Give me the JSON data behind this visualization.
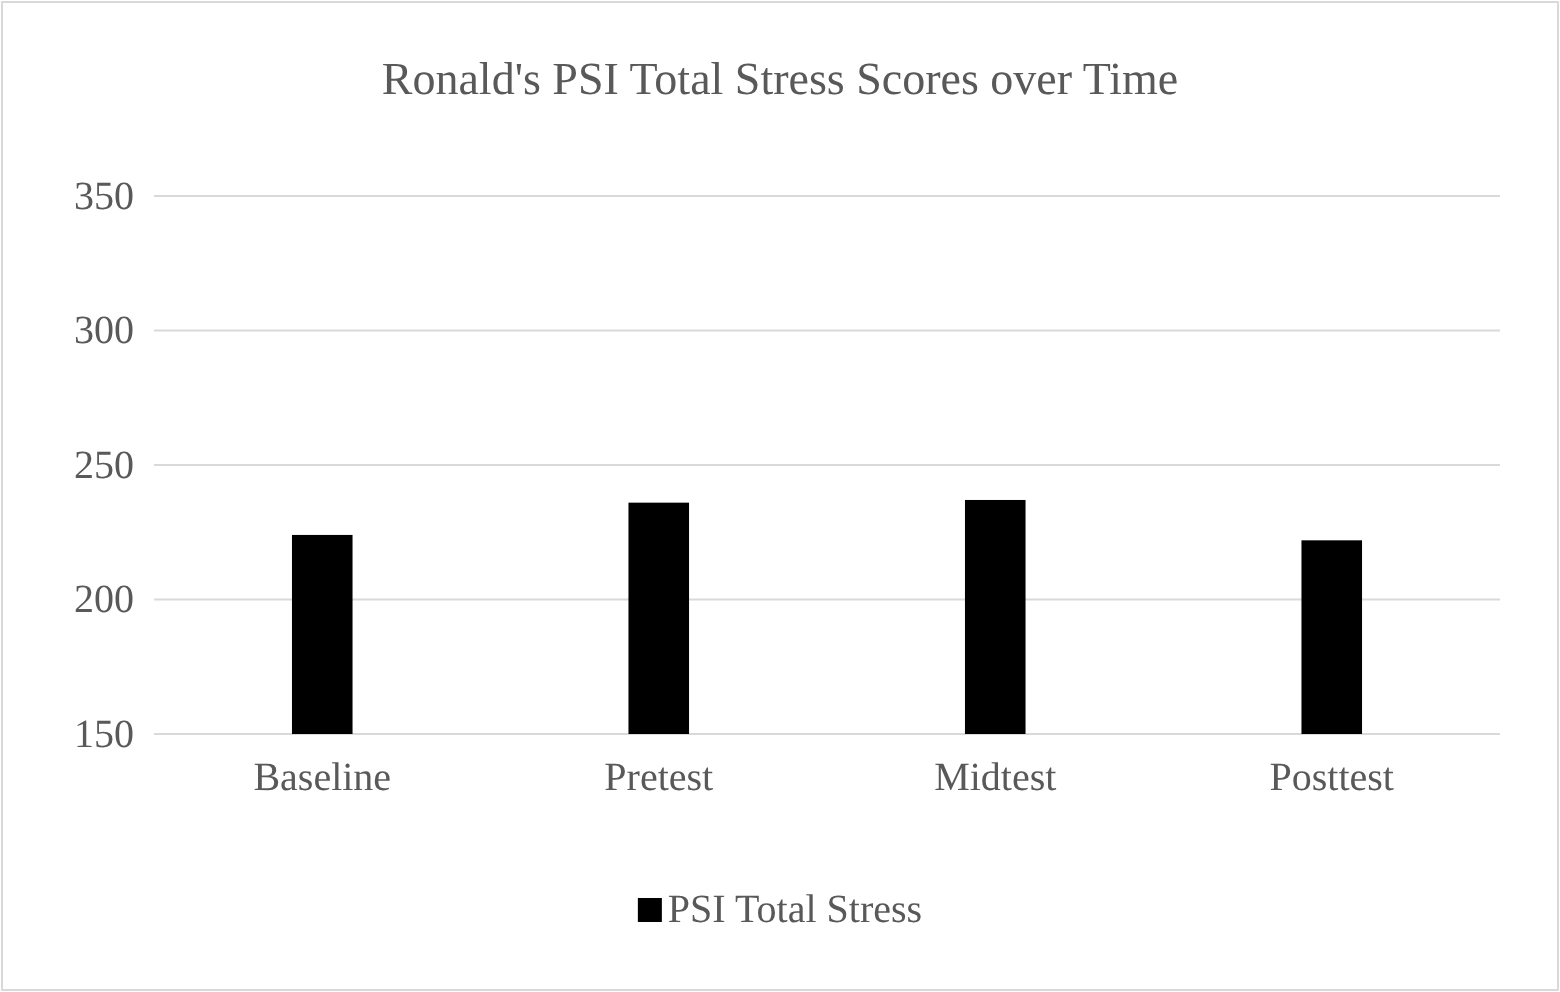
{
  "chart_data": {
    "type": "bar",
    "title": "Ronald's PSI Total Stress Scores over Time",
    "categories": [
      "Baseline",
      "Pretest",
      "Midtest",
      "Posttest"
    ],
    "series": [
      {
        "name": "PSI Total Stress",
        "color": "#000000",
        "values": [
          224,
          236,
          237,
          222
        ]
      }
    ],
    "ylim": [
      150,
      350
    ],
    "yticks": [
      150,
      200,
      250,
      300,
      350
    ],
    "grid": "y",
    "legend": "bottom"
  }
}
